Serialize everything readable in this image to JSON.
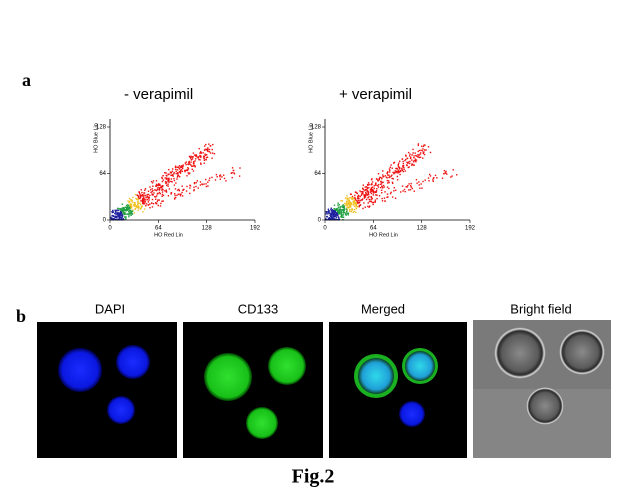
{
  "panel_a": {
    "label": "a",
    "plots": [
      {
        "title": "- verapimil",
        "x_label": "HO Red Lin",
        "y_label": "HO Blue Lin",
        "xticks": [
          0,
          64,
          128,
          192
        ],
        "yticks": [
          0,
          64,
          128
        ]
      },
      {
        "title": "+ verapimil",
        "x_label": "HO Red Lin",
        "y_label": "HO Blue Lin",
        "xticks": [
          0,
          64,
          128,
          192
        ],
        "yticks": [
          0,
          64,
          128
        ]
      }
    ]
  },
  "panel_b": {
    "label": "b",
    "images": [
      {
        "label": "DAPI"
      },
      {
        "label": "CD133"
      },
      {
        "label": "Merged"
      },
      {
        "label": "Bright field"
      }
    ]
  },
  "caption": "Fig.2"
}
